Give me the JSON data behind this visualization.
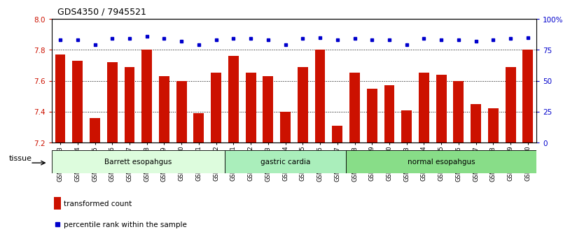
{
  "title": "GDS4350 / 7945521",
  "samples": [
    "GSM851983",
    "GSM851984",
    "GSM851985",
    "GSM851986",
    "GSM851987",
    "GSM851988",
    "GSM851989",
    "GSM851990",
    "GSM851991",
    "GSM851992",
    "GSM852001",
    "GSM852002",
    "GSM852003",
    "GSM852004",
    "GSM852005",
    "GSM852006",
    "GSM852007",
    "GSM852008",
    "GSM852009",
    "GSM852010",
    "GSM851993",
    "GSM851994",
    "GSM851995",
    "GSM851996",
    "GSM851997",
    "GSM851998",
    "GSM851999",
    "GSM852000"
  ],
  "bar_values": [
    7.77,
    7.73,
    7.36,
    7.72,
    7.69,
    7.8,
    7.63,
    7.6,
    7.39,
    7.65,
    7.76,
    7.65,
    7.63,
    7.4,
    7.69,
    7.8,
    7.31,
    7.65,
    7.55,
    7.57,
    7.41,
    7.65,
    7.64,
    7.6,
    7.45,
    7.42,
    7.69,
    7.8
  ],
  "percentile_values": [
    83,
    83,
    79,
    84,
    84,
    86,
    84,
    82,
    79,
    83,
    84,
    84,
    83,
    79,
    84,
    85,
    83,
    84,
    83,
    83,
    79,
    84,
    83,
    83,
    82,
    83,
    84,
    85
  ],
  "groups": [
    {
      "label": "Barrett esopahgus",
      "start": 0,
      "end": 10,
      "color": "#ccffcc"
    },
    {
      "label": "gastric cardia",
      "start": 10,
      "end": 17,
      "color": "#99ee99"
    },
    {
      "label": "normal esopahgus",
      "start": 17,
      "end": 28,
      "color": "#77dd77"
    }
  ],
  "bar_color": "#cc1100",
  "dot_color": "#0000cc",
  "ylim_left": [
    7.2,
    8.0
  ],
  "ylim_right": [
    0,
    100
  ],
  "yticks_left": [
    7.2,
    7.4,
    7.6,
    7.8,
    8.0
  ],
  "yticks_right": [
    0,
    25,
    50,
    75,
    100
  ],
  "ytick_labels_right": [
    "0",
    "25",
    "50",
    "75",
    "100%"
  ],
  "grid_values": [
    7.4,
    7.6,
    7.8
  ],
  "bg_color": "#ffffff",
  "legend_bar_label": "transformed count",
  "legend_dot_label": "percentile rank within the sample",
  "tissue_label": "tissue"
}
